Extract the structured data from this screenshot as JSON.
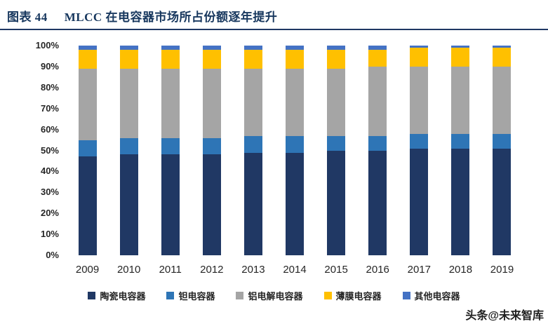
{
  "header": {
    "figure_label": "图表 44",
    "title": "MLCC 在电容器市场所占份额逐年提升"
  },
  "watermark": "头条@未来智库",
  "chart_data": {
    "type": "bar",
    "stacked": true,
    "stacked_percent": true,
    "title": "MLCC 在电容器市场所占份额逐年提升",
    "xlabel": "",
    "ylabel": "",
    "ylim": [
      0,
      100
    ],
    "grid": false,
    "legend_position": "bottom",
    "categories": [
      "2009",
      "2010",
      "2011",
      "2012",
      "2013",
      "2014",
      "2015",
      "2016",
      "2017",
      "2018",
      "2019"
    ],
    "y_ticks": [
      "0%",
      "10%",
      "20%",
      "30%",
      "40%",
      "50%",
      "60%",
      "70%",
      "80%",
      "90%",
      "100%"
    ],
    "series": [
      {
        "name": "陶瓷电容器",
        "color": "#203864",
        "values": [
          47,
          48,
          48,
          48,
          49,
          49,
          50,
          50,
          51,
          51,
          51
        ]
      },
      {
        "name": "钽电容器",
        "color": "#2E75B6",
        "values": [
          8,
          8,
          8,
          8,
          8,
          8,
          7,
          7,
          7,
          7,
          7
        ]
      },
      {
        "name": "铝电解电容器",
        "color": "#A5A5A5",
        "values": [
          34,
          33,
          33,
          33,
          32,
          32,
          32,
          33,
          32,
          32,
          32
        ]
      },
      {
        "name": "薄膜电容器",
        "color": "#FFC000",
        "values": [
          9,
          9,
          9,
          9,
          9,
          9,
          9,
          8,
          9,
          9,
          9
        ]
      },
      {
        "name": "其他电容器",
        "color": "#4472C4",
        "values": [
          2,
          2,
          2,
          2,
          2,
          2,
          2,
          2,
          1,
          1,
          1
        ]
      }
    ]
  }
}
